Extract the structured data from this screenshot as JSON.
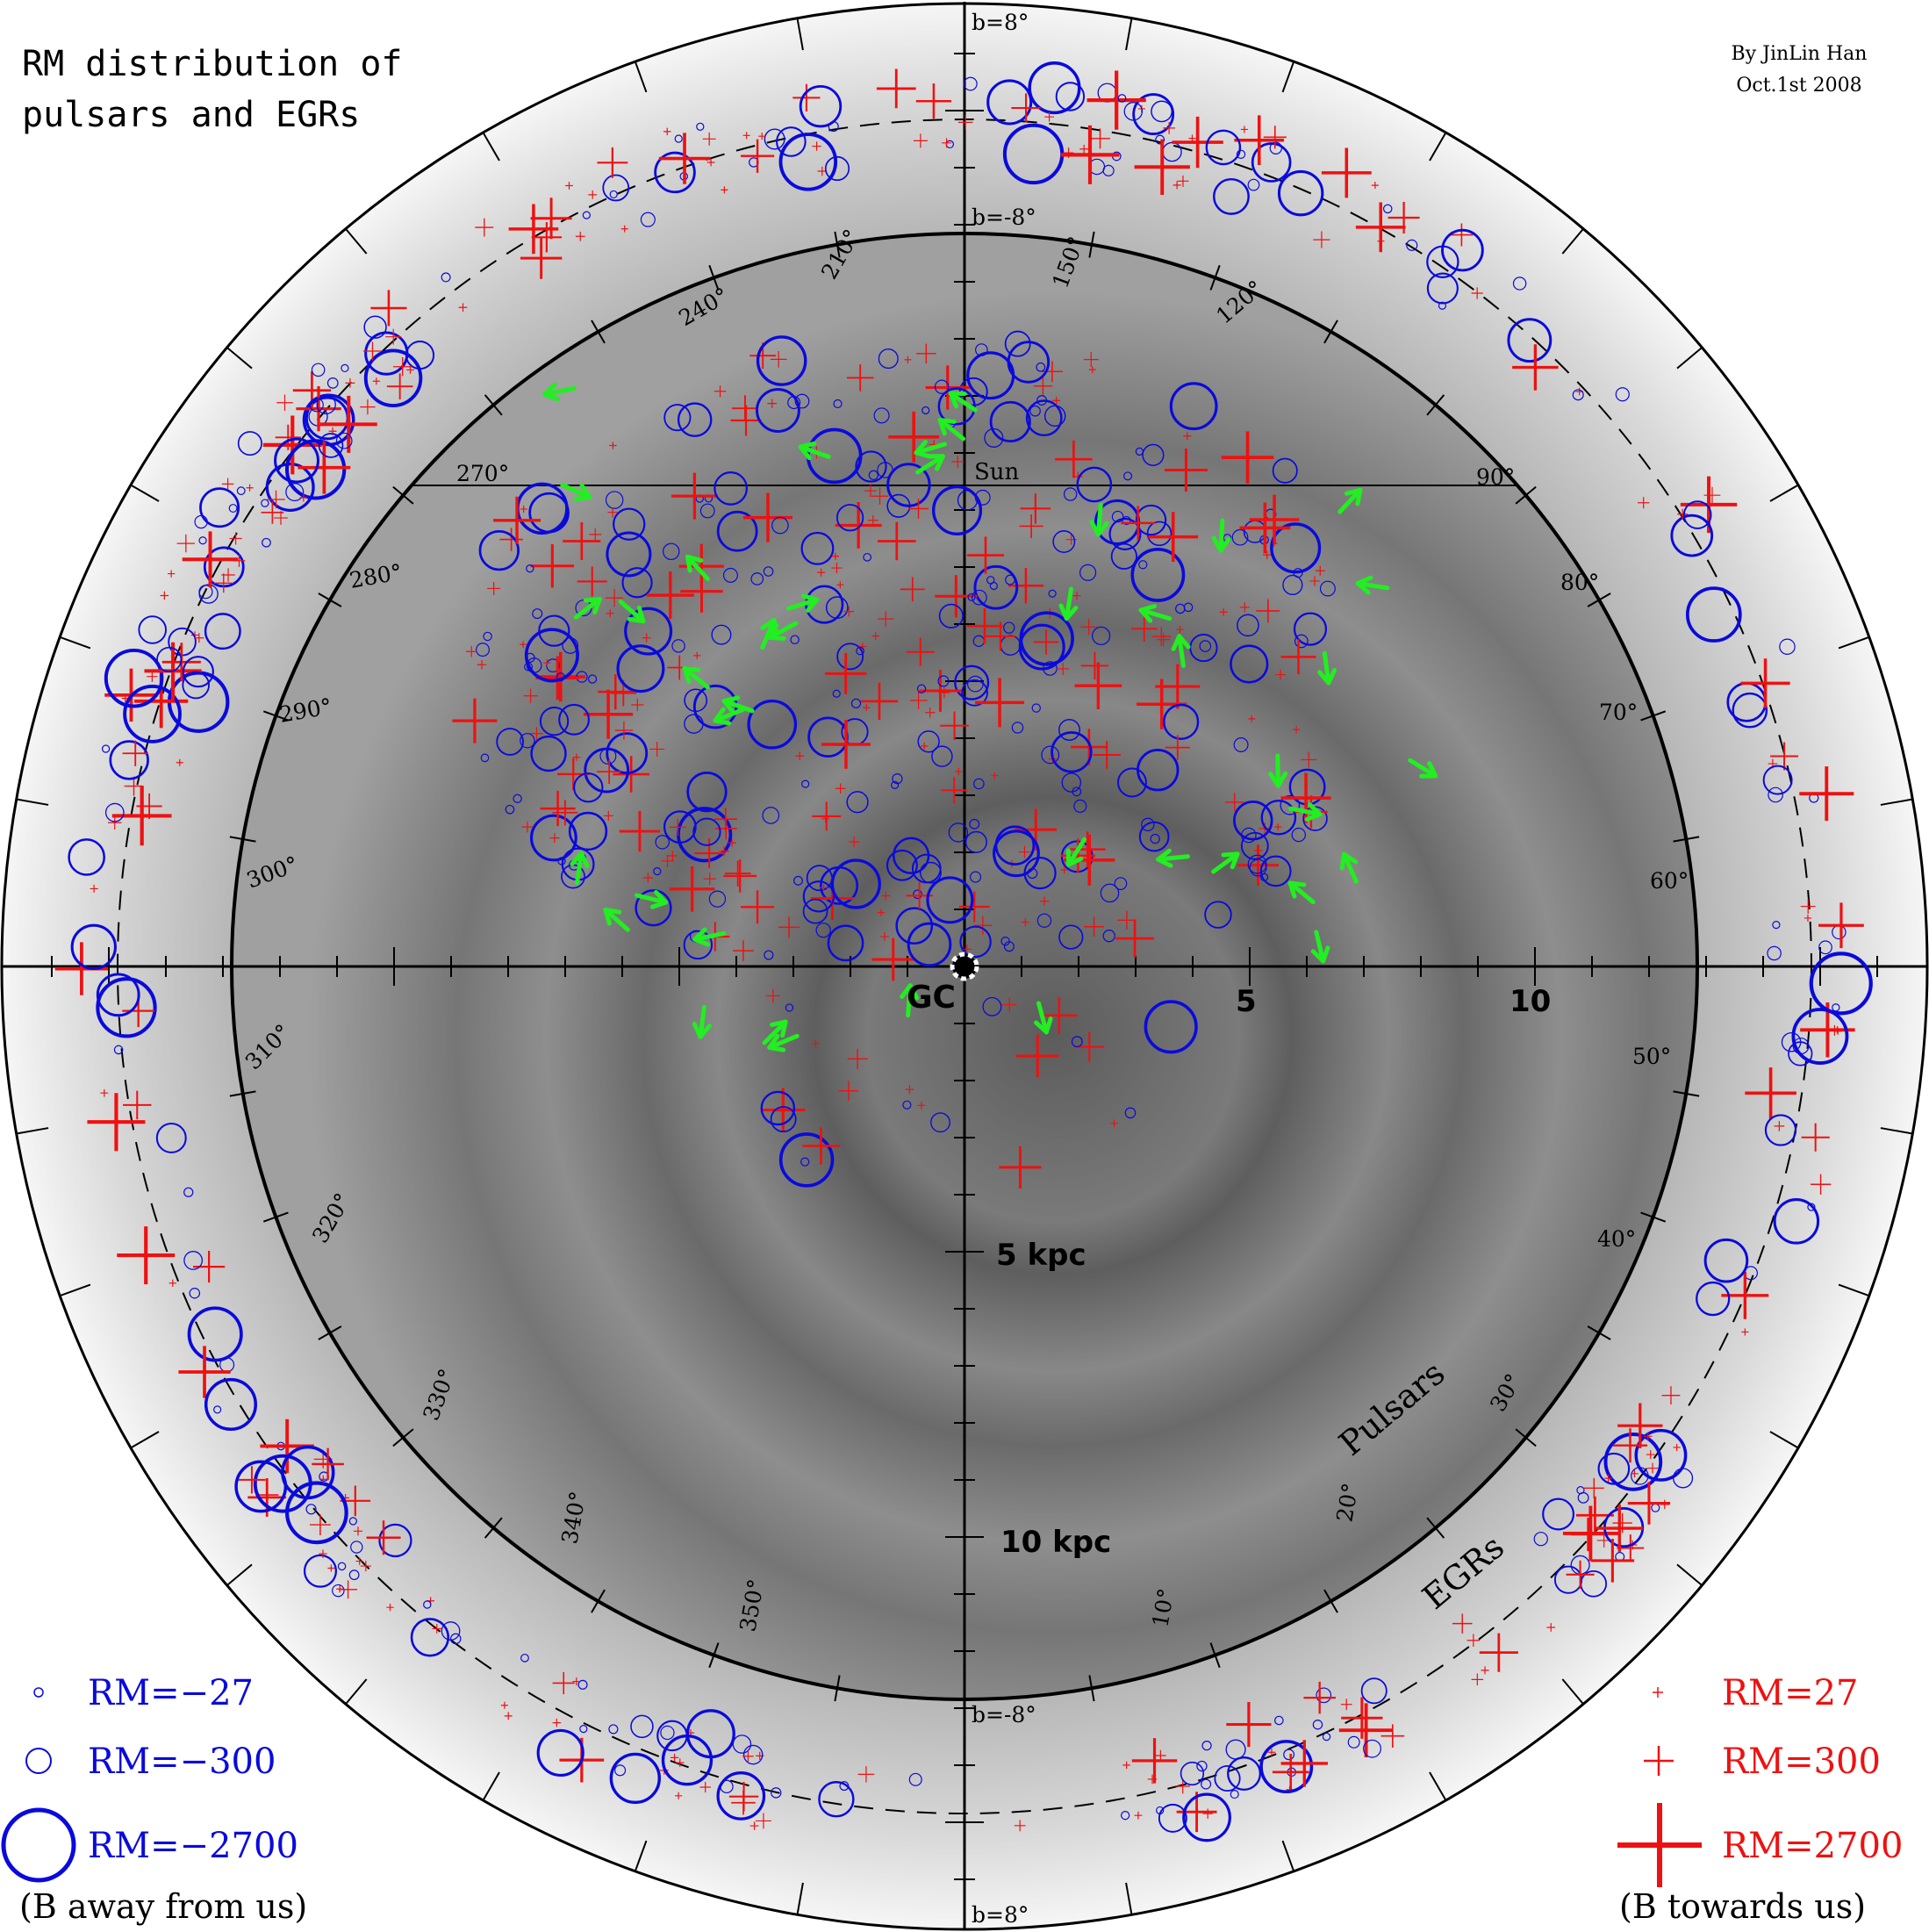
{
  "title_lines": [
    "RM distribution of",
    "pulsars and EGRs"
  ],
  "credit_lines": [
    "By JinLin Han",
    "Oct.1st 2008"
  ],
  "center_label": "GC",
  "sun_label": "Sun",
  "x_tick_labels": [
    "5",
    "10"
  ],
  "distance_labels": [
    "5 kpc",
    "10 kpc"
  ],
  "latitude_labels": {
    "outer_top": "b=8°",
    "inner_top": "b=-8°",
    "inner_bottom": "b=-8°",
    "outer_bottom": "b=8°"
  },
  "ring_labels": [
    "Pulsars",
    "EGRs"
  ],
  "longitude_labels": [
    "270°",
    "240°",
    "210°",
    "150°",
    "120°",
    "90°",
    "80°",
    "70°",
    "60°",
    "50°",
    "40°",
    "30°",
    "20°",
    "10°",
    "350°",
    "340°",
    "330°",
    "320°",
    "310°",
    "300°",
    "290°",
    "280°"
  ],
  "legend": {
    "negative": {
      "entries": [
        "RM=−27",
        "RM=−300",
        "RM=−2700"
      ],
      "note": "(B away from us)",
      "color": "#0a0adc"
    },
    "positive": {
      "entries": [
        "RM=27",
        "RM=300",
        "RM=2700"
      ],
      "note": "(B towards us)",
      "color": "#ee1111"
    }
  },
  "colors": {
    "negative_rm": "#0a0adc",
    "positive_rm": "#ee1111",
    "field_arrows": "#22ee22",
    "background_disk": "#8a8a8a"
  }
}
